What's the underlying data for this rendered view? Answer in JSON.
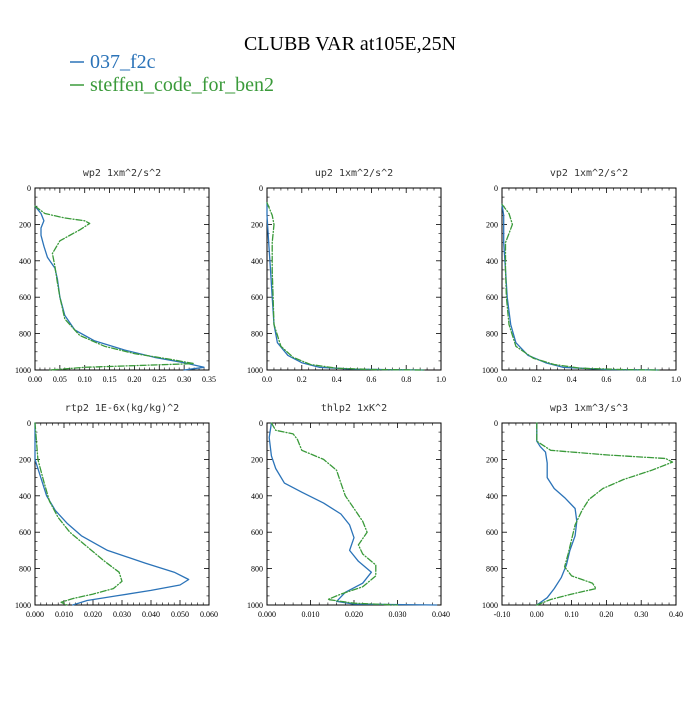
{
  "figure": {
    "title": "CLUBB VAR at105E,25N",
    "legend": [
      {
        "name": "037_f2c",
        "color": "#2b73b8"
      },
      {
        "name": "steffen_code_for_ben2",
        "color": "#3a9a3a"
      }
    ]
  },
  "chart_data": [
    {
      "type": "line",
      "title": "wp2  1xm^2/s^2",
      "xlim": [
        0,
        0.35
      ],
      "xticks": [
        "0.00",
        "0.05",
        "0.10",
        "0.15",
        "0.20",
        "0.25",
        "0.30",
        "0.35"
      ],
      "ylim": [
        1000,
        0
      ],
      "yticks": [
        "0",
        "200",
        "400",
        "600",
        "800",
        "1000"
      ],
      "series": [
        {
          "name": "037_f2c",
          "color": "#2b73b8",
          "dash": "",
          "points": [
            [
              0,
              100
            ],
            [
              0.012,
              140
            ],
            [
              0.018,
              180
            ],
            [
              0.012,
              220
            ],
            [
              0.012,
              260
            ],
            [
              0.018,
              320
            ],
            [
              0.025,
              380
            ],
            [
              0.04,
              440
            ],
            [
              0.045,
              500
            ],
            [
              0.05,
              600
            ],
            [
              0.06,
              700
            ],
            [
              0.08,
              780
            ],
            [
              0.12,
              840
            ],
            [
              0.18,
              890
            ],
            [
              0.24,
              930
            ],
            [
              0.3,
              960
            ],
            [
              0.34,
              985
            ],
            [
              0.3,
              1000
            ]
          ]
        },
        {
          "name": "steffen_code_for_ben2",
          "color": "#3a9a3a",
          "dash": "6 2 1 2",
          "points": [
            [
              0,
              100
            ],
            [
              0.02,
              140
            ],
            [
              0.06,
              165
            ],
            [
              0.1,
              180
            ],
            [
              0.11,
              195
            ],
            [
              0.09,
              230
            ],
            [
              0.05,
              290
            ],
            [
              0.035,
              360
            ],
            [
              0.04,
              430
            ],
            [
              0.045,
              520
            ],
            [
              0.05,
              600
            ],
            [
              0.06,
              720
            ],
            [
              0.09,
              810
            ],
            [
              0.14,
              870
            ],
            [
              0.2,
              910
            ],
            [
              0.27,
              940
            ],
            [
              0.32,
              965
            ],
            [
              0.1,
              985
            ],
            [
              0.03,
              1000
            ]
          ]
        }
      ]
    },
    {
      "type": "line",
      "title": "up2  1xm^2/s^2",
      "xlim": [
        0,
        1.0
      ],
      "xticks": [
        "0.0",
        "0.2",
        "0.4",
        "0.6",
        "0.8",
        "1.0"
      ],
      "ylim": [
        1000,
        0
      ],
      "yticks": [
        "0",
        "200",
        "400",
        "600",
        "800",
        "1000"
      ],
      "series": [
        {
          "name": "037_f2c",
          "color": "#2b73b8",
          "dash": "",
          "points": [
            [
              0.0,
              80
            ],
            [
              0.0,
              150
            ],
            [
              0.01,
              300
            ],
            [
              0.02,
              450
            ],
            [
              0.03,
              600
            ],
            [
              0.04,
              750
            ],
            [
              0.06,
              850
            ],
            [
              0.12,
              920
            ],
            [
              0.2,
              960
            ],
            [
              0.3,
              985
            ],
            [
              0.5,
              995
            ],
            [
              0.7,
              998
            ],
            [
              0.9,
              1000
            ]
          ]
        },
        {
          "name": "steffen_code_for_ben2",
          "color": "#3a9a3a",
          "dash": "6 2 1 2",
          "points": [
            [
              0.0,
              80
            ],
            [
              0.03,
              150
            ],
            [
              0.04,
              200
            ],
            [
              0.03,
              300
            ],
            [
              0.03,
              450
            ],
            [
              0.035,
              600
            ],
            [
              0.04,
              750
            ],
            [
              0.08,
              870
            ],
            [
              0.15,
              930
            ],
            [
              0.25,
              970
            ],
            [
              0.4,
              990
            ],
            [
              0.6,
              997
            ],
            [
              0.9,
              1000
            ]
          ]
        }
      ]
    },
    {
      "type": "line",
      "title": "vp2  1xm^2/s^2",
      "xlim": [
        0,
        1.0
      ],
      "xticks": [
        "0.0",
        "0.2",
        "0.4",
        "0.6",
        "0.8",
        "1.0"
      ],
      "ylim": [
        1000,
        0
      ],
      "yticks": [
        "0",
        "200",
        "400",
        "600",
        "800",
        "1000"
      ],
      "series": [
        {
          "name": "037_f2c",
          "color": "#2b73b8",
          "dash": "",
          "points": [
            [
              0.0,
              90
            ],
            [
              0.01,
              150
            ],
            [
              0.01,
              300
            ],
            [
              0.02,
              450
            ],
            [
              0.03,
              600
            ],
            [
              0.05,
              750
            ],
            [
              0.08,
              850
            ],
            [
              0.15,
              920
            ],
            [
              0.25,
              960
            ],
            [
              0.35,
              985
            ],
            [
              0.6,
              997
            ],
            [
              0.9,
              1000
            ]
          ]
        },
        {
          "name": "steffen_code_for_ben2",
          "color": "#3a9a3a",
          "dash": "6 2 1 2",
          "points": [
            [
              0.0,
              90
            ],
            [
              0.04,
              140
            ],
            [
              0.06,
              200
            ],
            [
              0.04,
              250
            ],
            [
              0.02,
              300
            ],
            [
              0.02,
              450
            ],
            [
              0.025,
              600
            ],
            [
              0.04,
              750
            ],
            [
              0.08,
              870
            ],
            [
              0.18,
              935
            ],
            [
              0.3,
              970
            ],
            [
              0.45,
              990
            ],
            [
              0.7,
              998
            ],
            [
              0.9,
              1000
            ]
          ]
        }
      ]
    },
    {
      "type": "line",
      "title": "rtp2  1E-6x(kg/kg)^2",
      "xlim": [
        0,
        0.06
      ],
      "xticks": [
        "0.000",
        "0.010",
        "0.020",
        "0.030",
        "0.040",
        "0.050",
        "0.060"
      ],
      "ylim": [
        1000,
        0
      ],
      "yticks": [
        "0",
        "200",
        "400",
        "600",
        "800",
        "1000"
      ],
      "series": [
        {
          "name": "037_f2c",
          "color": "#2b73b8",
          "dash": "",
          "points": [
            [
              0.0,
              0
            ],
            [
              0.0,
              200
            ],
            [
              0.002,
              300
            ],
            [
              0.004,
              400
            ],
            [
              0.007,
              480
            ],
            [
              0.011,
              550
            ],
            [
              0.016,
              620
            ],
            [
              0.025,
              700
            ],
            [
              0.038,
              770
            ],
            [
              0.048,
              820
            ],
            [
              0.053,
              860
            ],
            [
              0.05,
              890
            ],
            [
              0.04,
              920
            ],
            [
              0.028,
              950
            ],
            [
              0.018,
              975
            ],
            [
              0.013,
              1000
            ]
          ]
        },
        {
          "name": "steffen_code_for_ben2",
          "color": "#3a9a3a",
          "dash": "6 2 1 2",
          "points": [
            [
              0.0,
              0
            ],
            [
              0.001,
              200
            ],
            [
              0.003,
              320
            ],
            [
              0.005,
              430
            ],
            [
              0.008,
              520
            ],
            [
              0.012,
              600
            ],
            [
              0.018,
              680
            ],
            [
              0.024,
              760
            ],
            [
              0.029,
              820
            ],
            [
              0.03,
              870
            ],
            [
              0.027,
              910
            ],
            [
              0.02,
              940
            ],
            [
              0.013,
              965
            ],
            [
              0.009,
              985
            ],
            [
              0.011,
              1000
            ]
          ]
        }
      ]
    },
    {
      "type": "line",
      "title": "thlp2  1xK^2",
      "xlim": [
        0,
        0.04
      ],
      "xticks": [
        "0.000",
        "0.010",
        "0.020",
        "0.030",
        "0.040"
      ],
      "ylim": [
        1000,
        0
      ],
      "yticks": [
        "0",
        "200",
        "400",
        "600",
        "800",
        "1000"
      ],
      "series": [
        {
          "name": "037_f2c",
          "color": "#2b73b8",
          "dash": "",
          "points": [
            [
              0.001,
              0
            ],
            [
              0.0005,
              80
            ],
            [
              0.001,
              180
            ],
            [
              0.002,
              250
            ],
            [
              0.004,
              330
            ],
            [
              0.008,
              380
            ],
            [
              0.013,
              440
            ],
            [
              0.017,
              500
            ],
            [
              0.019,
              560
            ],
            [
              0.02,
              630
            ],
            [
              0.019,
              700
            ],
            [
              0.021,
              760
            ],
            [
              0.024,
              820
            ],
            [
              0.022,
              880
            ],
            [
              0.018,
              930
            ],
            [
              0.016,
              980
            ],
            [
              0.02,
              995
            ],
            [
              0.039,
              1000
            ]
          ]
        },
        {
          "name": "steffen_code_for_ben2",
          "color": "#3a9a3a",
          "dash": "6 2 1 2",
          "points": [
            [
              0.001,
              0
            ],
            [
              0.002,
              40
            ],
            [
              0.006,
              60
            ],
            [
              0.007,
              90
            ],
            [
              0.008,
              150
            ],
            [
              0.013,
              200
            ],
            [
              0.016,
              260
            ],
            [
              0.017,
              330
            ],
            [
              0.018,
              400
            ],
            [
              0.02,
              470
            ],
            [
              0.022,
              540
            ],
            [
              0.023,
              600
            ],
            [
              0.021,
              670
            ],
            [
              0.022,
              720
            ],
            [
              0.025,
              780
            ],
            [
              0.025,
              840
            ],
            [
              0.022,
              900
            ],
            [
              0.017,
              940
            ],
            [
              0.014,
              970
            ],
            [
              0.02,
              990
            ],
            [
              0.03,
              1000
            ]
          ]
        }
      ]
    },
    {
      "type": "line",
      "title": "wp3  1xm^3/s^3",
      "xlim": [
        -0.1,
        0.4
      ],
      "xticks": [
        "-0.10",
        "0.00",
        "0.10",
        "0.20",
        "0.30",
        "0.40"
      ],
      "ylim": [
        1000,
        0
      ],
      "yticks": [
        "0",
        "200",
        "400",
        "600",
        "800",
        "1000"
      ],
      "series": [
        {
          "name": "037_f2c",
          "color": "#2b73b8",
          "dash": "",
          "points": [
            [
              0.0,
              0
            ],
            [
              0.0,
              100
            ],
            [
              0.01,
              130
            ],
            [
              0.025,
              160
            ],
            [
              0.03,
              220
            ],
            [
              0.03,
              300
            ],
            [
              0.05,
              360
            ],
            [
              0.08,
              410
            ],
            [
              0.11,
              470
            ],
            [
              0.115,
              540
            ],
            [
              0.11,
              620
            ],
            [
              0.095,
              700
            ],
            [
              0.085,
              780
            ],
            [
              0.07,
              850
            ],
            [
              0.05,
              910
            ],
            [
              0.03,
              960
            ],
            [
              0.0,
              1000
            ]
          ]
        },
        {
          "name": "steffen_code_for_ben2",
          "color": "#3a9a3a",
          "dash": "6 2 1 2",
          "points": [
            [
              0.0,
              0
            ],
            [
              0.0,
              100
            ],
            [
              0.04,
              150
            ],
            [
              0.2,
              175
            ],
            [
              0.37,
              195
            ],
            [
              0.39,
              215
            ],
            [
              0.33,
              260
            ],
            [
              0.25,
              310
            ],
            [
              0.19,
              360
            ],
            [
              0.15,
              420
            ],
            [
              0.13,
              480
            ],
            [
              0.11,
              560
            ],
            [
              0.1,
              640
            ],
            [
              0.09,
              720
            ],
            [
              0.08,
              790
            ],
            [
              0.1,
              840
            ],
            [
              0.16,
              880
            ],
            [
              0.17,
              910
            ],
            [
              0.1,
              940
            ],
            [
              0.04,
              970
            ],
            [
              0.0,
              1000
            ]
          ]
        }
      ]
    }
  ]
}
